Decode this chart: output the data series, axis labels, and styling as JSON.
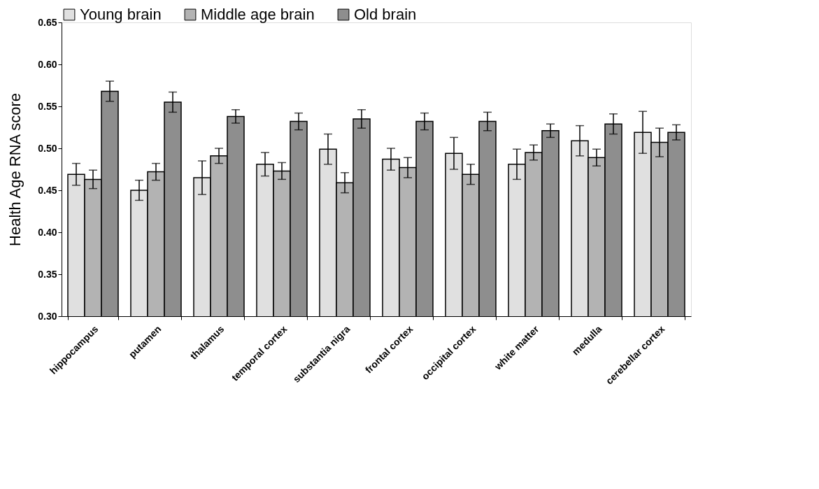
{
  "chart_data": {
    "type": "bar",
    "ylabel": "Health Age RNA score",
    "categories": [
      "hippocampus",
      "putamen",
      "thalamus",
      "temporal cortex",
      "substantia nigra",
      "frontal cortex",
      "occipital cortex",
      "white matter",
      "medulla",
      "cerebellar cortex"
    ],
    "series": [
      {
        "name": "Young brain",
        "color": "#e0e0e0",
        "values": [
          0.469,
          0.45,
          0.465,
          0.481,
          0.499,
          0.487,
          0.494,
          0.481,
          0.509,
          0.519
        ],
        "errors": [
          0.013,
          0.012,
          0.02,
          0.014,
          0.018,
          0.013,
          0.019,
          0.018,
          0.018,
          0.025
        ]
      },
      {
        "name": "Middle age brain",
        "color": "#b3b3b3",
        "values": [
          0.463,
          0.472,
          0.491,
          0.473,
          0.459,
          0.477,
          0.469,
          0.495,
          0.489,
          0.507
        ],
        "errors": [
          0.011,
          0.01,
          0.009,
          0.01,
          0.012,
          0.012,
          0.012,
          0.009,
          0.01,
          0.017
        ]
      },
      {
        "name": "Old brain",
        "color": "#8e8e8e",
        "values": [
          0.568,
          0.555,
          0.538,
          0.532,
          0.535,
          0.532,
          0.532,
          0.521,
          0.529,
          0.519
        ],
        "errors": [
          0.012,
          0.012,
          0.008,
          0.01,
          0.011,
          0.01,
          0.011,
          0.008,
          0.012,
          0.009
        ]
      }
    ],
    "ylim": [
      0.3,
      0.65
    ],
    "yticks": [
      {
        "value": 0.3,
        "label": "0.30"
      },
      0.35,
      {
        "value": 0.4,
        "label": "0.40"
      },
      0.45,
      {
        "value": 0.5,
        "label": "0.50"
      },
      0.55,
      {
        "value": 0.6,
        "label": "0.60"
      },
      0.65
    ],
    "grid": false,
    "legend": "top"
  }
}
